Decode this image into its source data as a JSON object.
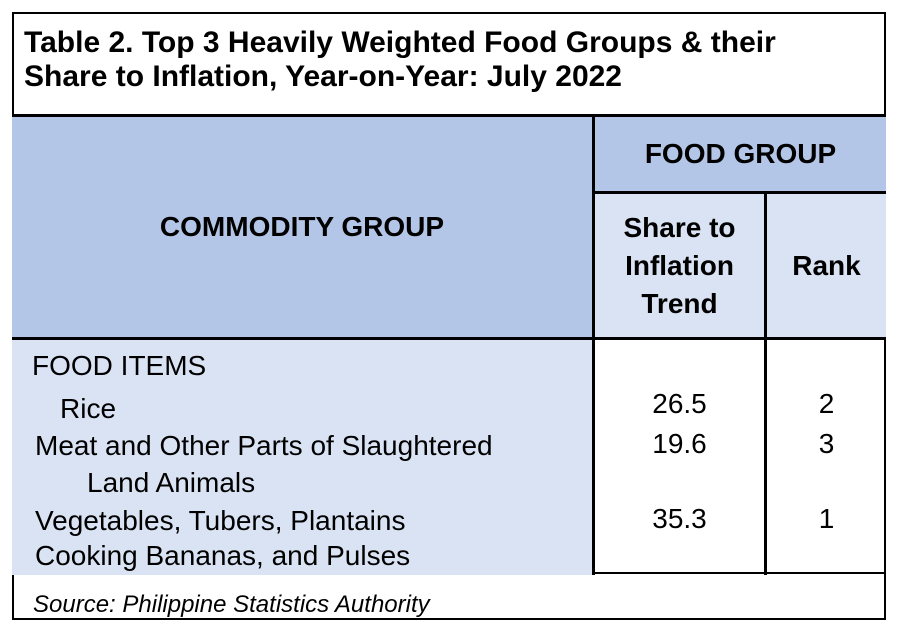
{
  "title": {
    "line1": "Table 2. Top 3 Heavily Weighted Food Groups & their",
    "line2": "Share to Inflation, Year-on-Year: July 2022"
  },
  "header": {
    "commodity_group": "COMMODITY GROUP",
    "food_group": "FOOD GROUP",
    "share_line1": "Share to",
    "share_line2": "Inflation",
    "share_line3": "Trend",
    "rank": "Rank"
  },
  "body": {
    "section_label": "FOOD ITEMS",
    "rows": [
      {
        "label_line1": "Rice",
        "label_line2": "",
        "share": "26.5",
        "rank": "2"
      },
      {
        "label_line1": "Meat and Other Parts of Slaughtered",
        "label_line2": "Land Animals",
        "share": "19.6",
        "rank": "3"
      },
      {
        "label_line1": "Vegetables, Tubers, Plantains",
        "label_line2": "Cooking Bananas, and Pulses",
        "share": "35.3",
        "rank": "1"
      }
    ]
  },
  "source": "Source: Philippine Statistics Authority",
  "colors": {
    "header_dark": "#b4c6e7",
    "header_light": "#dae3f3",
    "border": "#000000"
  }
}
